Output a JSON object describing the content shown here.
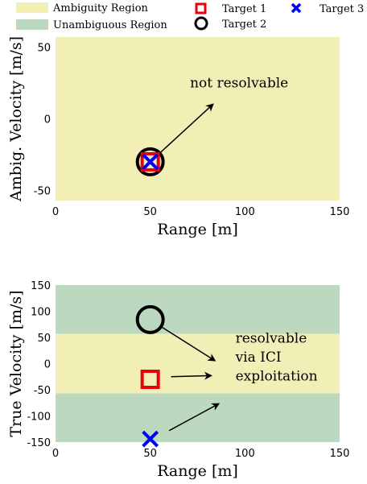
{
  "legend": {
    "items": [
      {
        "label": "Ambiguity Region",
        "kind": "patch",
        "color": "#f1efb6"
      },
      {
        "label": "Unambiguous Region",
        "kind": "patch",
        "color": "#bcd9bf"
      },
      {
        "label": "Target 1",
        "kind": "square",
        "color": "#e8000b"
      },
      {
        "label": "Target 2",
        "kind": "circle",
        "color": "#000000"
      },
      {
        "label": "Target 3",
        "kind": "cross",
        "color": "#0000ff"
      }
    ]
  },
  "chart_data": [
    {
      "type": "scatter",
      "xlabel": "Range [m]",
      "ylabel": "Ambig. Velocity [m/s]",
      "xlim": [
        0,
        150
      ],
      "ylim": [
        -57,
        57
      ],
      "xticks": [
        "0",
        "50",
        "100",
        "150"
      ],
      "yticks": [
        "-50",
        "0",
        "50"
      ],
      "xtick_values": [
        0,
        50,
        100,
        150
      ],
      "ytick_values": [
        -50,
        0,
        50
      ],
      "regions": [
        {
          "name": "Ambiguity Region",
          "y0": -57,
          "y1": 57,
          "color": "#f1efb6"
        }
      ],
      "series": [
        {
          "name": "Target 1",
          "marker": "square",
          "color": "#e8000b",
          "x": [
            50
          ],
          "y": [
            -30
          ]
        },
        {
          "name": "Target 2",
          "marker": "circle",
          "color": "#000000",
          "x": [
            50
          ],
          "y": [
            -30
          ]
        },
        {
          "name": "Target 3",
          "marker": "cross",
          "color": "#0000ff",
          "x": [
            50
          ],
          "y": [
            -30
          ]
        }
      ],
      "annotations": [
        {
          "text": "not resolvable",
          "x": 71,
          "y": 22
        }
      ],
      "arrows": [
        {
          "x0": 55,
          "y0": -24,
          "x1": 83,
          "y1": 10
        }
      ]
    },
    {
      "type": "scatter",
      "xlabel": "Range [m]",
      "ylabel": "True Velocity [m/s]",
      "xlim": [
        0,
        150
      ],
      "ylim": [
        -150,
        150
      ],
      "xticks": [
        "0",
        "50",
        "100",
        "150"
      ],
      "yticks": [
        "-150",
        "-100",
        "-50",
        "0",
        "50",
        "100",
        "150"
      ],
      "xtick_values": [
        0,
        50,
        100,
        150
      ],
      "ytick_values": [
        -150,
        -100,
        -50,
        0,
        50,
        100,
        150
      ],
      "regions": [
        {
          "name": "Unambiguous Region",
          "y0": 57,
          "y1": 150,
          "color": "#bcd9bf"
        },
        {
          "name": "Ambiguity Region",
          "y0": -57,
          "y1": 57,
          "color": "#f1efb6"
        },
        {
          "name": "Unambiguous Region",
          "y0": -150,
          "y1": -57,
          "color": "#bcd9bf"
        }
      ],
      "series": [
        {
          "name": "Target 1",
          "marker": "square",
          "color": "#e8000b",
          "x": [
            50
          ],
          "y": [
            -30
          ]
        },
        {
          "name": "Target 2",
          "marker": "circle",
          "color": "#000000",
          "x": [
            50
          ],
          "y": [
            84
          ]
        },
        {
          "name": "Target 3",
          "marker": "cross",
          "color": "#0000ff",
          "x": [
            50
          ],
          "y": [
            -144
          ]
        }
      ],
      "annotations": [
        {
          "text": "resolvable",
          "x": 95,
          "y": 40
        },
        {
          "text": "via ICI",
          "x": 95,
          "y": 4
        },
        {
          "text": "exploitation",
          "x": 95,
          "y": -32
        }
      ],
      "arrows": [
        {
          "x0": 56,
          "y0": 70,
          "x1": 84,
          "y1": 6
        },
        {
          "x0": 61,
          "y0": -25,
          "x1": 82,
          "y1": -23
        },
        {
          "x0": 60,
          "y0": -128,
          "x1": 86,
          "y1": -77
        }
      ]
    }
  ]
}
